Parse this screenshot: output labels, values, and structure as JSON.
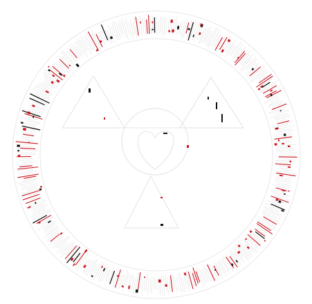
{
  "emblem": {
    "kind": "circular-seal",
    "palette": {
      "background": "#ffffff",
      "outline": "#e7e7e7",
      "ink": "#111111",
      "accent": "#c8141e"
    },
    "icons": [
      "ring-glyphs",
      "triangle",
      "circle",
      "heart"
    ]
  }
}
